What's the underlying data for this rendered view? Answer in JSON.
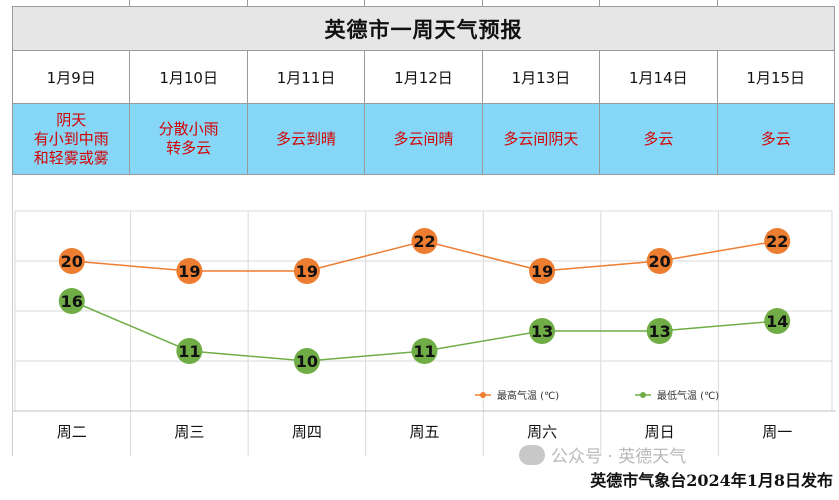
{
  "title": "英德市一周天气预报",
  "days": [
    {
      "date": "1月9日",
      "weather": "阴天\n有小到中雨\n和轻雾或雾",
      "weekday": "周二"
    },
    {
      "date": "1月10日",
      "weather": "分散小雨\n转多云",
      "weekday": "周三"
    },
    {
      "date": "1月11日",
      "weather": "多云到晴",
      "weekday": "周四"
    },
    {
      "date": "1月12日",
      "weather": "多云间晴",
      "weekday": "周五"
    },
    {
      "date": "1月13日",
      "weather": "多云间阴天",
      "weekday": "周六"
    },
    {
      "date": "1月14日",
      "weather": "多云",
      "weekday": "周日"
    },
    {
      "date": "1月15日",
      "weather": "多云",
      "weekday": "周一"
    }
  ],
  "chart_data": {
    "type": "line",
    "categories": [
      "周二",
      "周三",
      "周四",
      "周五",
      "周六",
      "周日",
      "周一"
    ],
    "series": [
      {
        "name": "最高气温 (℃)",
        "values": [
          20,
          19,
          19,
          22,
          19,
          20,
          22
        ],
        "color": "#ed7d31"
      },
      {
        "name": "最低气温 (℃)",
        "values": [
          16,
          11,
          10,
          11,
          13,
          13,
          14
        ],
        "color": "#70ad47"
      }
    ],
    "ylim": [
      5,
      25
    ],
    "legend_position": "bottom-right"
  },
  "footer": "英德市气象台2024年1月8日发布",
  "watermark": "公众号 · 英德天气"
}
